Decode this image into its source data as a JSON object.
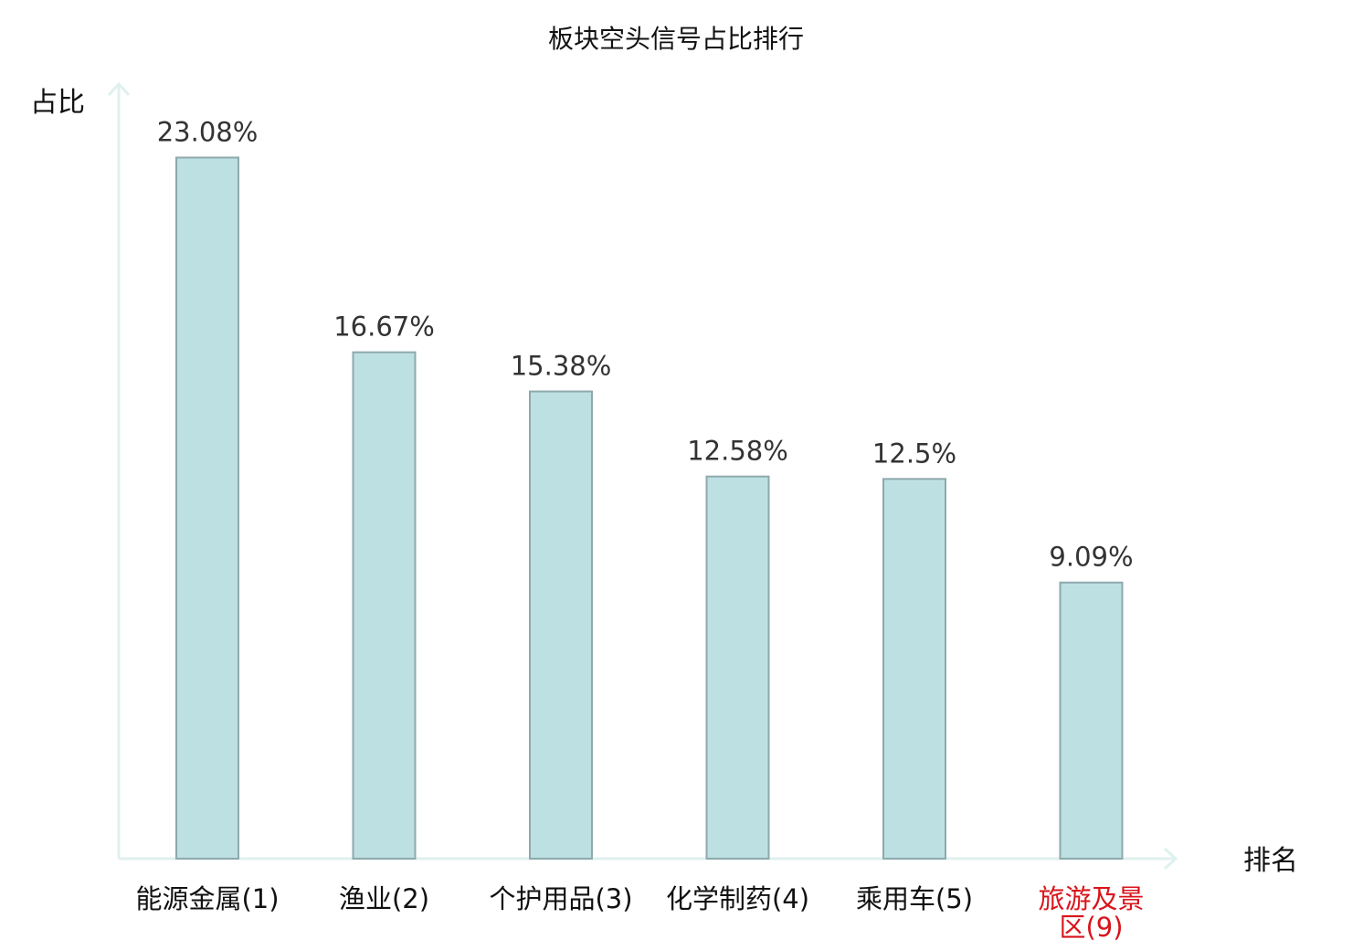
{
  "chart_data": {
    "type": "bar",
    "title": "板块空头信号占比排行",
    "xlabel": "排名",
    "ylabel": "占比",
    "ylim": [
      0,
      25.5
    ],
    "grid": false,
    "categories": [
      [
        "能源金属(1)"
      ],
      [
        "渔业(2)"
      ],
      [
        "个护用品(3)"
      ],
      [
        "化学制药(4)"
      ],
      [
        "乘用车(5)"
      ],
      [
        "旅游及景",
        "区(9)"
      ]
    ],
    "values": [
      23.08,
      16.67,
      15.38,
      12.58,
      12.5,
      9.09
    ],
    "value_labels": [
      "23.08%",
      "16.67%",
      "15.38%",
      "12.58%",
      "12.5%",
      "9.09%"
    ],
    "highlight_index": 5,
    "colors": {
      "bar_fill": "#bde0e3",
      "bar_stroke": "#8ea9ad",
      "axis": "#dff1ef",
      "text": "#111111",
      "value_text": "#333333",
      "highlight_text": "#d9141b"
    }
  }
}
